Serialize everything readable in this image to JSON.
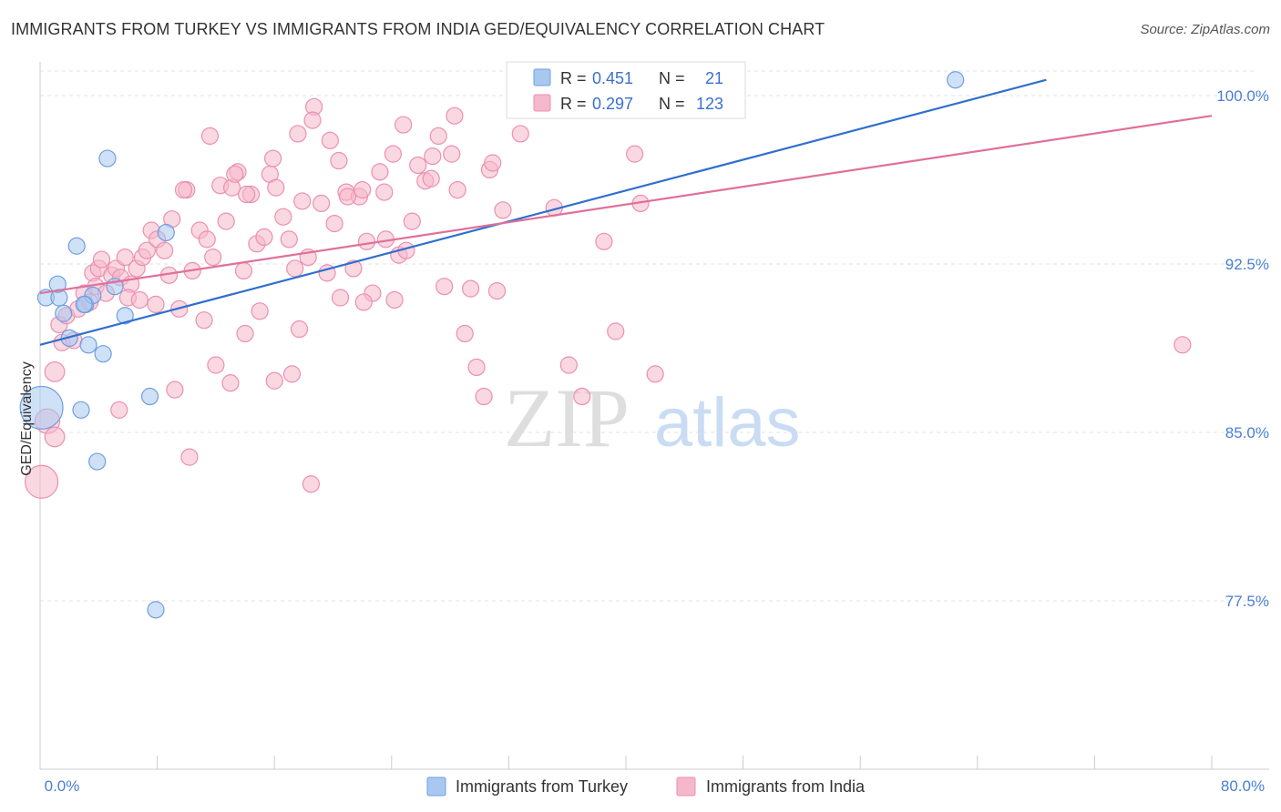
{
  "title": "IMMIGRANTS FROM TURKEY VS IMMIGRANTS FROM INDIA GED/EQUIVALENCY CORRELATION CHART",
  "source": "Source: ZipAtlas.com",
  "watermark": {
    "zip": "ZIP",
    "atlas": "atlas"
  },
  "colors": {
    "turkey_fill": "#a8c8f0",
    "turkey_stroke": "#6f9fe0",
    "turkey_line": "#2f6fce",
    "india_fill": "#f5b8cb",
    "india_stroke": "#ec8fb0",
    "india_line": "#e07099",
    "tick_label": "#4a7fd4",
    "grid": "#e3e3e3"
  },
  "legend": {
    "r_label": "R =",
    "n_label": "N =",
    "rows": [
      {
        "r": "0.451",
        "n": "21"
      },
      {
        "r": "0.297",
        "n": "123"
      }
    ]
  },
  "chart_data": {
    "type": "scatter",
    "xlabel": "",
    "ylabel": "GED/Equivalency",
    "xlim": [
      0,
      80
    ],
    "ylim": [
      70,
      101.5
    ],
    "x_tick_labels": [
      "0.0%",
      "80.0%"
    ],
    "y_ticks": [
      77.5,
      85.0,
      92.5,
      100.0
    ],
    "y_tick_labels": [
      "77.5%",
      "85.0%",
      "92.5%",
      "100.0%"
    ],
    "grid": true,
    "legend_position": "top-center",
    "series": [
      {
        "name": "Immigrants from Turkey",
        "trend": [
          [
            0,
            88.9
          ],
          [
            68.7,
            100.7
          ]
        ],
        "points": [
          [
            0.4,
            91.0,
            1
          ],
          [
            1.3,
            91.0,
            1
          ],
          [
            1.2,
            91.6,
            1
          ],
          [
            1.6,
            90.3,
            1
          ],
          [
            2.0,
            89.2,
            1
          ],
          [
            2.5,
            93.3,
            1
          ],
          [
            3.1,
            90.7,
            1
          ],
          [
            3.3,
            88.9,
            1
          ],
          [
            3.6,
            91.1,
            1
          ],
          [
            4.3,
            88.5,
            1
          ],
          [
            4.6,
            97.2,
            1
          ],
          [
            5.1,
            91.5,
            1
          ],
          [
            5.8,
            90.2,
            1
          ],
          [
            7.5,
            86.6,
            1
          ],
          [
            8.6,
            93.9,
            1
          ],
          [
            2.8,
            86.0,
            1
          ],
          [
            3.9,
            83.7,
            1
          ],
          [
            7.9,
            77.1,
            1
          ],
          [
            0.1,
            86.1,
            2.6
          ],
          [
            62.5,
            100.7,
            1
          ],
          [
            3.0,
            90.7,
            1
          ]
        ]
      },
      {
        "name": "Immigrants from India",
        "trend": [
          [
            0,
            91.2
          ],
          [
            80,
            99.1
          ]
        ],
        "points": [
          [
            0.1,
            82.8,
            2
          ],
          [
            0.5,
            85.5,
            1.5
          ],
          [
            1.0,
            84.8,
            1.2
          ],
          [
            1.0,
            87.7,
            1.2
          ],
          [
            1.3,
            89.8,
            1
          ],
          [
            1.5,
            89.0,
            1
          ],
          [
            1.8,
            90.2,
            1
          ],
          [
            2.3,
            89.1,
            1
          ],
          [
            2.6,
            90.5,
            1
          ],
          [
            3.0,
            91.2,
            1
          ],
          [
            3.4,
            90.8,
            1
          ],
          [
            3.6,
            92.1,
            1
          ],
          [
            3.8,
            91.5,
            1
          ],
          [
            4.0,
            92.3,
            1
          ],
          [
            4.2,
            92.7,
            1
          ],
          [
            4.5,
            91.2,
            1
          ],
          [
            4.9,
            92.0,
            1
          ],
          [
            5.2,
            92.3,
            1
          ],
          [
            5.5,
            91.9,
            1
          ],
          [
            5.8,
            92.8,
            1
          ],
          [
            6.2,
            91.6,
            1
          ],
          [
            6.6,
            92.3,
            1
          ],
          [
            7.0,
            92.8,
            1
          ],
          [
            7.3,
            93.1,
            1
          ],
          [
            7.6,
            94.0,
            1
          ],
          [
            8.0,
            93.6,
            1
          ],
          [
            8.5,
            93.1,
            1
          ],
          [
            9.0,
            94.5,
            1
          ],
          [
            9.5,
            90.5,
            1
          ],
          [
            10.0,
            95.8,
            1
          ],
          [
            10.4,
            92.2,
            1
          ],
          [
            10.9,
            94.0,
            1
          ],
          [
            11.4,
            93.6,
            1
          ],
          [
            11.8,
            92.8,
            1
          ],
          [
            12.3,
            96.0,
            1
          ],
          [
            12.7,
            94.4,
            1
          ],
          [
            13.1,
            95.9,
            1
          ],
          [
            13.5,
            96.6,
            1
          ],
          [
            13.9,
            92.2,
            1
          ],
          [
            14.4,
            95.6,
            1
          ],
          [
            14.8,
            93.4,
            1
          ],
          [
            15.3,
            93.7,
            1
          ],
          [
            15.7,
            96.5,
            1
          ],
          [
            16.1,
            95.9,
            1
          ],
          [
            16.6,
            94.6,
            1
          ],
          [
            17.0,
            93.6,
            1
          ],
          [
            17.4,
            92.3,
            1
          ],
          [
            17.9,
            95.3,
            1
          ],
          [
            18.3,
            92.8,
            1
          ],
          [
            18.7,
            99.5,
            1
          ],
          [
            19.2,
            95.2,
            1
          ],
          [
            19.6,
            92.1,
            1
          ],
          [
            20.1,
            94.3,
            1
          ],
          [
            20.5,
            91.0,
            1
          ],
          [
            20.9,
            95.7,
            1
          ],
          [
            21.4,
            92.3,
            1
          ],
          [
            21.8,
            95.5,
            1
          ],
          [
            22.3,
            93.5,
            1
          ],
          [
            22.7,
            91.2,
            1
          ],
          [
            23.2,
            96.6,
            1
          ],
          [
            23.6,
            93.6,
            1
          ],
          [
            24.1,
            97.4,
            1
          ],
          [
            24.5,
            92.9,
            1
          ],
          [
            25.0,
            93.1,
            1
          ],
          [
            25.4,
            94.4,
            1
          ],
          [
            25.8,
            96.9,
            1
          ],
          [
            26.3,
            96.2,
            1
          ],
          [
            26.7,
            96.3,
            1
          ],
          [
            27.2,
            98.2,
            1
          ],
          [
            27.6,
            91.5,
            1
          ],
          [
            28.1,
            97.4,
            1
          ],
          [
            28.5,
            95.8,
            1
          ],
          [
            29.0,
            89.4,
            1
          ],
          [
            29.4,
            91.4,
            1
          ],
          [
            29.8,
            87.9,
            1
          ],
          [
            30.3,
            86.6,
            1
          ],
          [
            30.7,
            96.7,
            1
          ],
          [
            31.2,
            91.3,
            1
          ],
          [
            31.6,
            94.9,
            1
          ],
          [
            14.0,
            89.4,
            1
          ],
          [
            12.0,
            88.0,
            1
          ],
          [
            13.0,
            87.2,
            1
          ],
          [
            16.0,
            87.3,
            1
          ],
          [
            17.2,
            87.6,
            1
          ],
          [
            18.5,
            82.7,
            1
          ],
          [
            10.2,
            83.9,
            1
          ],
          [
            9.2,
            86.9,
            1
          ],
          [
            5.4,
            86.0,
            1
          ],
          [
            6.0,
            91.0,
            1
          ],
          [
            8.8,
            92.0,
            1
          ],
          [
            11.2,
            90.0,
            1
          ],
          [
            15.0,
            90.4,
            1
          ],
          [
            17.7,
            89.6,
            1
          ],
          [
            22.1,
            90.8,
            1
          ],
          [
            24.2,
            90.9,
            1
          ],
          [
            6.8,
            90.9,
            1
          ],
          [
            7.9,
            90.7,
            1
          ],
          [
            9.8,
            95.8,
            1
          ],
          [
            11.6,
            98.2,
            1
          ],
          [
            13.3,
            96.5,
            1
          ],
          [
            14.1,
            95.6,
            1
          ],
          [
            15.9,
            97.2,
            1
          ],
          [
            17.6,
            98.3,
            1
          ],
          [
            18.6,
            98.9,
            1
          ],
          [
            19.8,
            98.0,
            1
          ],
          [
            20.4,
            97.1,
            1
          ],
          [
            21.0,
            95.5,
            1
          ],
          [
            22.0,
            95.8,
            1
          ],
          [
            23.5,
            95.7,
            1
          ],
          [
            24.8,
            98.7,
            1
          ],
          [
            26.8,
            97.3,
            1
          ],
          [
            28.3,
            99.1,
            1
          ],
          [
            30.9,
            97.0,
            1
          ],
          [
            32.8,
            98.3,
            1
          ],
          [
            35.1,
            95.0,
            1
          ],
          [
            38.5,
            93.5,
            1
          ],
          [
            39.3,
            89.5,
            1
          ],
          [
            40.6,
            97.4,
            1
          ],
          [
            36.1,
            88.0,
            1
          ],
          [
            37.0,
            86.6,
            1
          ],
          [
            41.0,
            95.2,
            1
          ],
          [
            42.0,
            87.6,
            1
          ],
          [
            78.0,
            88.9,
            1
          ]
        ]
      }
    ]
  }
}
